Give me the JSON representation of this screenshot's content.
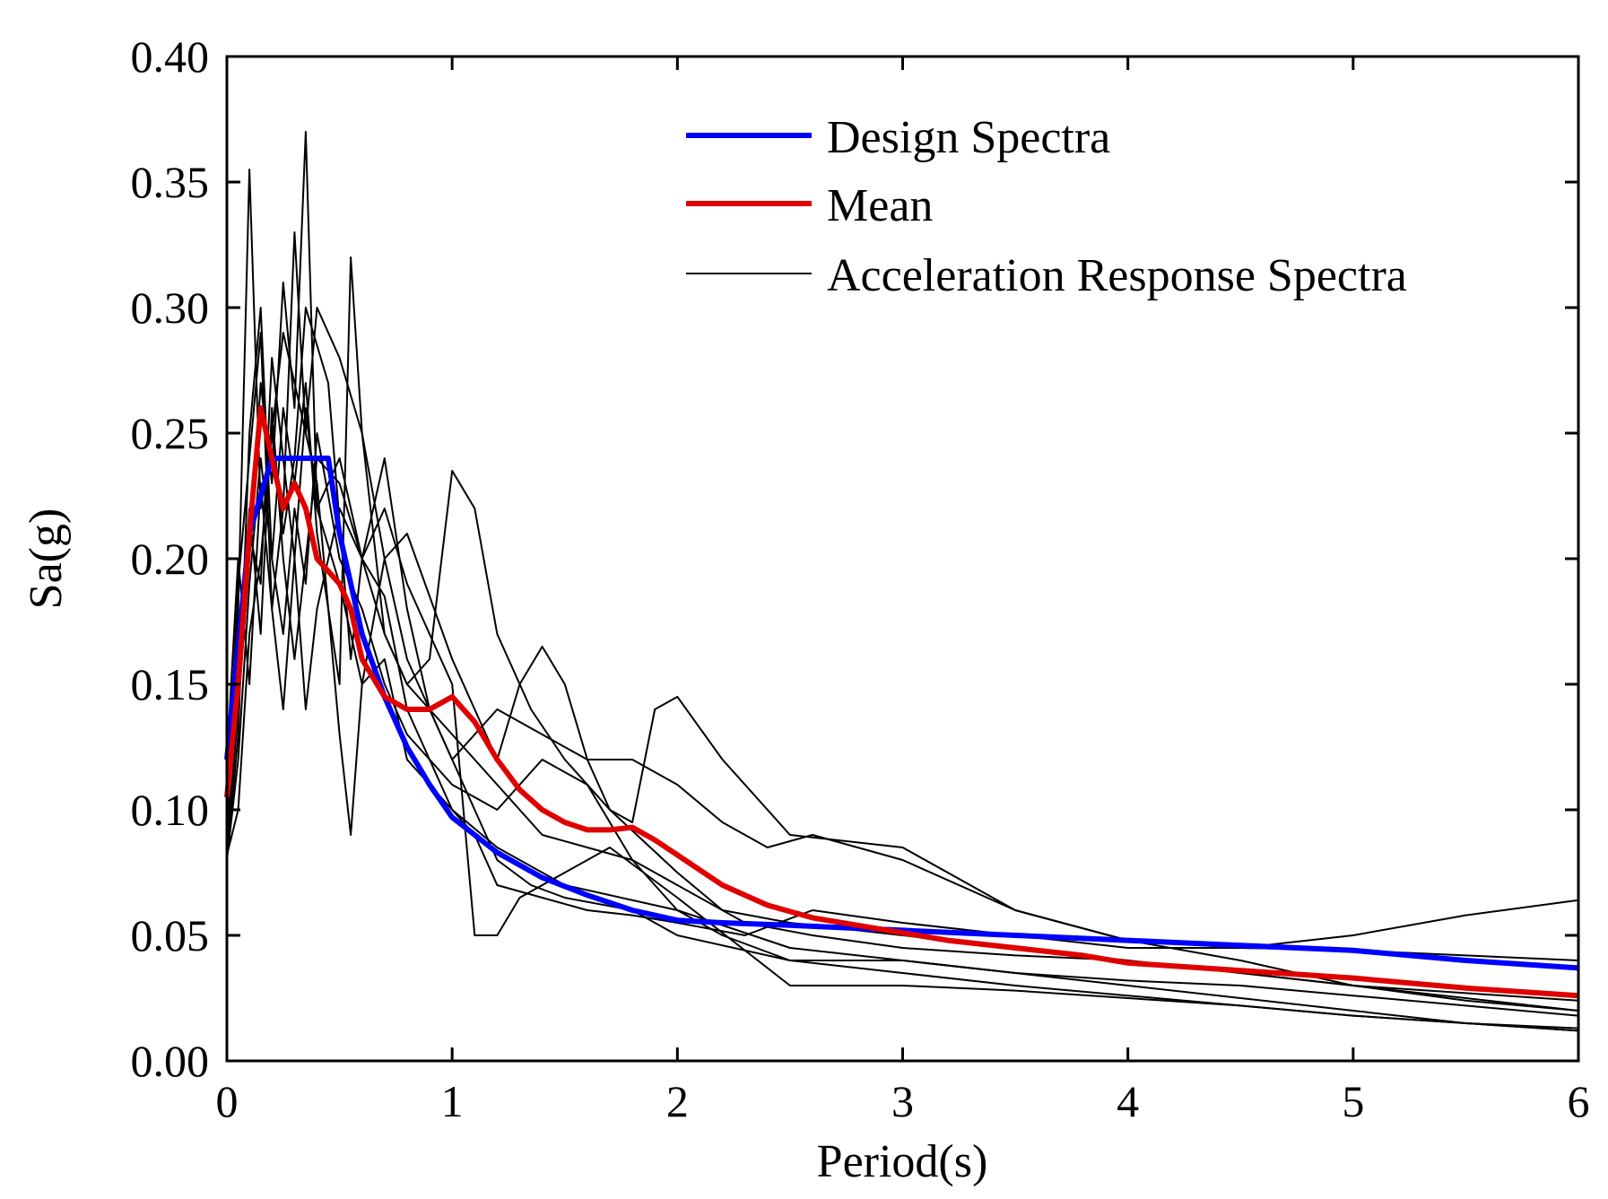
{
  "chart_data": {
    "type": "line",
    "xlabel": "Period(s)",
    "ylabel": "Sa(g)",
    "xlim": [
      0,
      6
    ],
    "ylim": [
      0,
      0.4
    ],
    "xticks": [
      0,
      1,
      2,
      3,
      4,
      5,
      6
    ],
    "yticks": [
      0.0,
      0.05,
      0.1,
      0.15,
      0.2,
      0.25,
      0.3,
      0.35,
      0.4
    ],
    "xtick_labels": [
      "0",
      "1",
      "2",
      "3",
      "4",
      "5",
      "6"
    ],
    "ytick_labels": [
      "0.00",
      "0.05",
      "0.10",
      "0.15",
      "0.20",
      "0.25",
      "0.30",
      "0.35",
      "0.40"
    ],
    "grid": false,
    "legend_position": "top-right",
    "legend": [
      {
        "label": "Design Spectra",
        "color": "#0000ff"
      },
      {
        "label": "Mean",
        "color": "#e00000"
      },
      {
        "label": "Acceleration Response Spectra",
        "color": "#000000"
      }
    ],
    "series": [
      {
        "name": "Design Spectra",
        "role": "design",
        "color": "#0000ff",
        "x": [
          0,
          0.1,
          0.2,
          0.3,
          0.4,
          0.45,
          0.5,
          0.6,
          0.7,
          0.8,
          0.9,
          1.0,
          1.2,
          1.4,
          1.6,
          1.8,
          2.0,
          2.2,
          2.5,
          3.0,
          3.5,
          4.0,
          4.5,
          5.0,
          5.5,
          6.0
        ],
        "y": [
          0.12,
          0.21,
          0.24,
          0.24,
          0.24,
          0.24,
          0.21,
          0.17,
          0.145,
          0.125,
          0.11,
          0.097,
          0.083,
          0.073,
          0.066,
          0.06,
          0.056,
          0.055,
          0.054,
          0.052,
          0.05,
          0.048,
          0.046,
          0.044,
          0.04,
          0.037
        ]
      },
      {
        "name": "Mean",
        "role": "mean",
        "color": "#e00000",
        "x": [
          0,
          0.05,
          0.1,
          0.15,
          0.2,
          0.25,
          0.3,
          0.35,
          0.4,
          0.5,
          0.55,
          0.6,
          0.7,
          0.8,
          0.9,
          1.0,
          1.1,
          1.2,
          1.3,
          1.4,
          1.5,
          1.6,
          1.7,
          1.8,
          1.9,
          2.0,
          2.1,
          2.2,
          2.4,
          2.6,
          2.8,
          3.0,
          3.2,
          3.5,
          3.8,
          4.0,
          4.5,
          5.0,
          5.5,
          6.0
        ],
        "y": [
          0.105,
          0.15,
          0.21,
          0.26,
          0.24,
          0.22,
          0.23,
          0.22,
          0.2,
          0.19,
          0.18,
          0.16,
          0.145,
          0.14,
          0.14,
          0.145,
          0.135,
          0.12,
          0.108,
          0.1,
          0.095,
          0.092,
          0.092,
          0.093,
          0.088,
          0.082,
          0.076,
          0.07,
          0.062,
          0.057,
          0.054,
          0.051,
          0.048,
          0.045,
          0.042,
          0.039,
          0.036,
          0.033,
          0.029,
          0.026
        ]
      },
      {
        "role": "record",
        "color": "#000000",
        "x": [
          0,
          0.05,
          0.1,
          0.15,
          0.2,
          0.25,
          0.3,
          0.35,
          0.4,
          0.5,
          0.6,
          0.7,
          0.8,
          1.0,
          1.2,
          1.5,
          2.0,
          2.5,
          3.0,
          3.5,
          4.0,
          4.5,
          5.0,
          5.5,
          6.0
        ],
        "y": [
          0.085,
          0.14,
          0.2,
          0.27,
          0.23,
          0.31,
          0.26,
          0.37,
          0.22,
          0.19,
          0.15,
          0.16,
          0.12,
          0.1,
          0.085,
          0.07,
          0.06,
          0.045,
          0.04,
          0.035,
          0.03,
          0.025,
          0.02,
          0.015,
          0.012
        ]
      },
      {
        "role": "record",
        "color": "#000000",
        "x": [
          0,
          0.05,
          0.1,
          0.15,
          0.2,
          0.25,
          0.3,
          0.35,
          0.45,
          0.55,
          0.6,
          0.7,
          0.8,
          0.9,
          1.0,
          1.1,
          1.2,
          1.35,
          1.5,
          1.8,
          2.0,
          2.5,
          3.0,
          3.5,
          4.0,
          4.5,
          5.0,
          5.5,
          6.0
        ],
        "y": [
          0.09,
          0.18,
          0.355,
          0.22,
          0.25,
          0.21,
          0.24,
          0.3,
          0.27,
          0.16,
          0.2,
          0.24,
          0.18,
          0.14,
          0.12,
          0.1,
          0.08,
          0.07,
          0.065,
          0.06,
          0.05,
          0.04,
          0.035,
          0.03,
          0.026,
          0.022,
          0.018,
          0.015,
          0.012
        ]
      },
      {
        "role": "record",
        "color": "#000000",
        "x": [
          0,
          0.05,
          0.1,
          0.15,
          0.2,
          0.25,
          0.3,
          0.35,
          0.4,
          0.5,
          0.55,
          0.6,
          0.7,
          0.8,
          0.9,
          1.0,
          1.1,
          1.2,
          1.35,
          1.5,
          1.7,
          2.0,
          2.2,
          2.5,
          3.0,
          3.5,
          4.0,
          4.5,
          5.0,
          5.5,
          6.0
        ],
        "y": [
          0.08,
          0.13,
          0.25,
          0.3,
          0.2,
          0.26,
          0.23,
          0.27,
          0.21,
          0.15,
          0.32,
          0.25,
          0.17,
          0.15,
          0.16,
          0.235,
          0.22,
          0.17,
          0.14,
          0.12,
          0.1,
          0.075,
          0.06,
          0.055,
          0.05,
          0.045,
          0.04,
          0.035,
          0.03,
          0.027,
          0.024
        ]
      },
      {
        "role": "record",
        "color": "#000000",
        "x": [
          0,
          0.05,
          0.1,
          0.15,
          0.2,
          0.25,
          0.3,
          0.35,
          0.4,
          0.5,
          0.55,
          0.6,
          0.7,
          0.8,
          1.0,
          1.1,
          1.2,
          1.3,
          1.4,
          1.5,
          1.6,
          1.7,
          1.8,
          1.9,
          2.0,
          2.2,
          2.5,
          3.0,
          3.5,
          4.0,
          4.5,
          5.0,
          5.5,
          6.0
        ],
        "y": [
          0.1,
          0.19,
          0.24,
          0.29,
          0.18,
          0.22,
          0.33,
          0.25,
          0.23,
          0.13,
          0.09,
          0.15,
          0.2,
          0.21,
          0.16,
          0.14,
          0.12,
          0.15,
          0.165,
          0.15,
          0.12,
          0.1,
          0.095,
          0.14,
          0.145,
          0.12,
          0.09,
          0.085,
          0.06,
          0.048,
          0.045,
          0.044,
          0.042,
          0.04
        ]
      },
      {
        "role": "record",
        "color": "#000000",
        "x": [
          0,
          0.05,
          0.1,
          0.15,
          0.2,
          0.25,
          0.3,
          0.35,
          0.4,
          0.5,
          0.6,
          0.7,
          0.8,
          0.9,
          1.0,
          1.1,
          1.2,
          1.3,
          1.5,
          1.7,
          2.0,
          2.5,
          3.0,
          3.5,
          4.0,
          4.5,
          5.0,
          5.5,
          6.0
        ],
        "y": [
          0.09,
          0.16,
          0.21,
          0.19,
          0.28,
          0.24,
          0.2,
          0.26,
          0.22,
          0.24,
          0.2,
          0.22,
          0.19,
          0.17,
          0.15,
          0.05,
          0.05,
          0.065,
          0.075,
          0.085,
          0.065,
          0.03,
          0.03,
          0.028,
          0.025,
          0.022,
          0.018,
          0.015,
          0.013
        ]
      },
      {
        "role": "record",
        "color": "#000000",
        "x": [
          0,
          0.05,
          0.1,
          0.15,
          0.2,
          0.25,
          0.3,
          0.35,
          0.4,
          0.5,
          0.6,
          0.7,
          0.8,
          0.9,
          1.0,
          1.2,
          1.4,
          1.6,
          1.8,
          2.0,
          2.2,
          2.4,
          2.6,
          3.0,
          3.5,
          4.0,
          4.5,
          5.0,
          5.5,
          6.0
        ],
        "y": [
          0.082,
          0.1,
          0.17,
          0.2,
          0.25,
          0.29,
          0.27,
          0.25,
          0.3,
          0.28,
          0.25,
          0.2,
          0.16,
          0.14,
          0.12,
          0.14,
          0.13,
          0.12,
          0.12,
          0.11,
          0.095,
          0.085,
          0.09,
          0.08,
          0.06,
          0.048,
          0.04,
          0.03,
          0.025,
          0.02
        ]
      },
      {
        "role": "record",
        "color": "#000000",
        "x": [
          0,
          0.05,
          0.1,
          0.15,
          0.2,
          0.25,
          0.3,
          0.35,
          0.4,
          0.5,
          0.6,
          0.7,
          0.8,
          0.9,
          1.0,
          1.1,
          1.2,
          1.4,
          1.6,
          1.8,
          2.0,
          2.3,
          2.6,
          3.0,
          3.5,
          4.0,
          4.5,
          5.0,
          5.5,
          6.0
        ],
        "y": [
          0.12,
          0.2,
          0.15,
          0.23,
          0.18,
          0.14,
          0.2,
          0.14,
          0.18,
          0.22,
          0.2,
          0.185,
          0.14,
          0.12,
          0.1,
          0.09,
          0.07,
          0.065,
          0.06,
          0.058,
          0.055,
          0.05,
          0.06,
          0.055,
          0.05,
          0.045,
          0.045,
          0.05,
          0.058,
          0.064
        ]
      },
      {
        "role": "record",
        "color": "#000000",
        "x": [
          0,
          0.05,
          0.1,
          0.15,
          0.2,
          0.25,
          0.3,
          0.35,
          0.4,
          0.5,
          0.6,
          0.7,
          0.8,
          0.9,
          1.0,
          1.2,
          1.4,
          1.6,
          1.8,
          2.0,
          2.3,
          2.6,
          3.0,
          3.5,
          4.0,
          4.5,
          5.0,
          5.5,
          6.0
        ],
        "y": [
          0.13,
          0.16,
          0.22,
          0.17,
          0.26,
          0.2,
          0.16,
          0.2,
          0.24,
          0.23,
          0.2,
          0.17,
          0.15,
          0.14,
          0.13,
          0.11,
          0.09,
          0.085,
          0.08,
          0.07,
          0.055,
          0.05,
          0.045,
          0.042,
          0.04,
          0.035,
          0.03,
          0.024,
          0.02
        ]
      },
      {
        "role": "record",
        "color": "#000000",
        "x": [
          0,
          0.05,
          0.1,
          0.15,
          0.2,
          0.25,
          0.3,
          0.35,
          0.4,
          0.5,
          0.6,
          0.7,
          0.8,
          1.0,
          1.2,
          1.4,
          1.6,
          1.8,
          2.0,
          2.2,
          2.5,
          3.0,
          3.5,
          4.0,
          4.5,
          5.0,
          5.5,
          6.0
        ],
        "y": [
          0.08,
          0.12,
          0.19,
          0.24,
          0.2,
          0.17,
          0.22,
          0.19,
          0.25,
          0.2,
          0.18,
          0.15,
          0.13,
          0.11,
          0.1,
          0.12,
          0.11,
          0.08,
          0.06,
          0.05,
          0.04,
          0.04,
          0.035,
          0.032,
          0.03,
          0.026,
          0.022,
          0.018
        ]
      }
    ]
  }
}
